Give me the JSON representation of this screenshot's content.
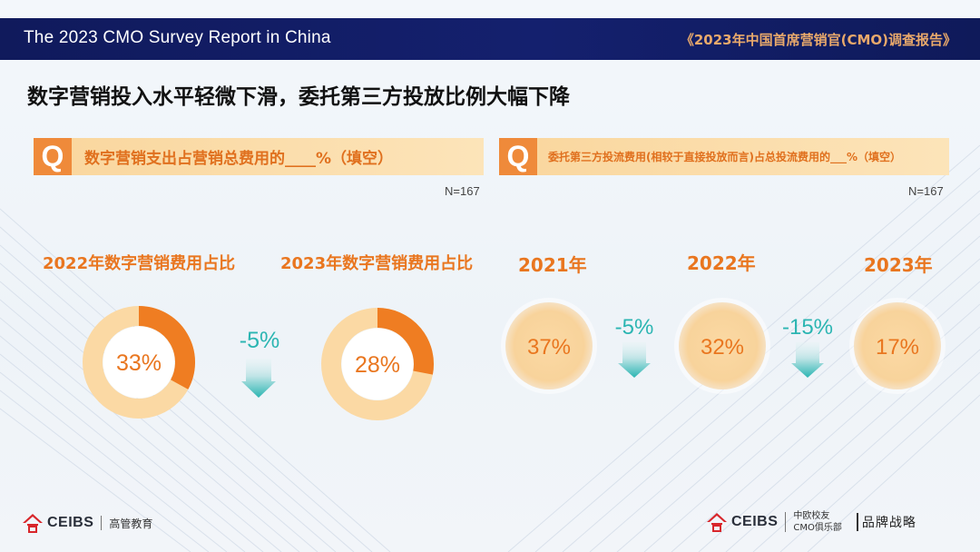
{
  "header": {
    "left_title": "The 2023 CMO Survey Report in China",
    "right_title": "《2023年中国首席营销官(CMO)调查报告》"
  },
  "main_title": "数字营销投入水平轻微下滑，委托第三方投放比例大幅下降",
  "question_left": {
    "badge": "Q",
    "text": "数字营销支出占营销总费用的____%（填空）",
    "n": "N=167"
  },
  "question_right": {
    "badge": "Q",
    "text": "委托第三方投流费用(相较于直接投放而言)占总投流费用的___%（填空）",
    "n": "N=167"
  },
  "colors": {
    "orange": "#ef7d22",
    "light_orange": "#fbd9a4",
    "teal": "#2bb5b2",
    "navy": "#13206a"
  },
  "chart_data": [
    {
      "type": "pie",
      "title": "2022年数字营销费用占比",
      "values": [
        33,
        67
      ],
      "value_label": "33%"
    },
    {
      "type": "pie",
      "title": "2023年数字营销费用占比",
      "values": [
        28,
        72
      ],
      "value_label": "28%"
    },
    {
      "type": "bar",
      "categories": [
        "2021年",
        "2022年",
        "2023年"
      ],
      "values": [
        37,
        32,
        17
      ],
      "value_labels": [
        "37%",
        "32%",
        "17%"
      ]
    }
  ],
  "changes": {
    "left": "-5%",
    "right_1": "-5%",
    "right_2": "-15%"
  },
  "footer": {
    "left_brand": "CEIBS",
    "left_sub": "高管教育",
    "right_brand": "CEIBS",
    "right_sub_1": "中欧校友",
    "right_sub_2": "CMO俱乐部",
    "right_mark": "品牌战略"
  }
}
